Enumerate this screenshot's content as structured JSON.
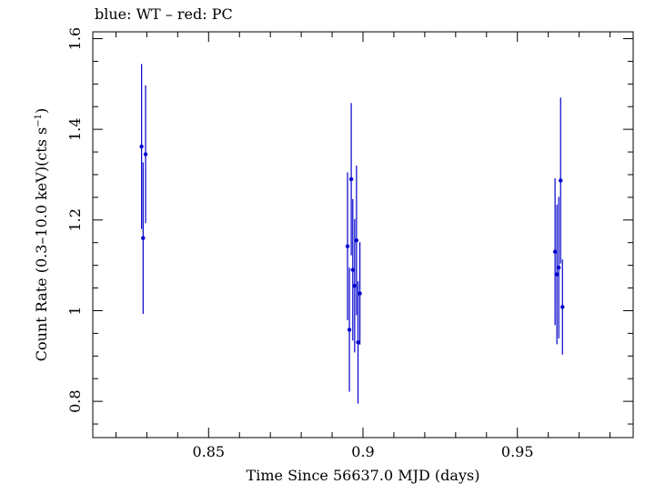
{
  "chart_data": {
    "type": "scatter",
    "title": "blue: WT – red: PC",
    "xlabel": "Time Since 56637.0 MJD (days)",
    "ylabel_main": "Count Rate (0.3–10.0 keV)(cts s",
    "ylabel_sup": "−1",
    "ylabel_close": ")",
    "xlim": [
      0.8125,
      0.9875
    ],
    "ylim": [
      0.72,
      1.615
    ],
    "x_ticks": [
      0.85,
      0.9,
      0.95
    ],
    "x_tick_labels": [
      "0.85",
      "0.9",
      "0.95"
    ],
    "y_ticks": [
      0.8,
      1.0,
      1.2,
      1.4,
      1.6
    ],
    "y_tick_labels": [
      "0.8",
      "1",
      "1.2",
      "1.4",
      "1.6"
    ],
    "series": [
      {
        "name": "WT",
        "color": "#0000cc",
        "points": [
          {
            "x": 0.8283,
            "y": 1.362,
            "yerr": 0.182
          },
          {
            "x": 0.8288,
            "y": 1.16,
            "yerr": 0.167
          },
          {
            "x": 0.8296,
            "y": 1.345,
            "yerr": 0.152
          },
          {
            "x": 0.895,
            "y": 1.142,
            "yerr": 0.163
          },
          {
            "x": 0.8956,
            "y": 0.958,
            "yerr": 0.137
          },
          {
            "x": 0.8962,
            "y": 1.29,
            "yerr": 0.168
          },
          {
            "x": 0.8967,
            "y": 1.09,
            "yerr": 0.156
          },
          {
            "x": 0.8973,
            "y": 1.055,
            "yerr": 0.147
          },
          {
            "x": 0.8979,
            "y": 1.155,
            "yerr": 0.165
          },
          {
            "x": 0.8984,
            "y": 0.93,
            "yerr": 0.135
          },
          {
            "x": 0.899,
            "y": 1.038,
            "yerr": 0.113
          },
          {
            "x": 0.9622,
            "y": 1.13,
            "yerr": 0.162
          },
          {
            "x": 0.9628,
            "y": 1.08,
            "yerr": 0.154
          },
          {
            "x": 0.9634,
            "y": 1.095,
            "yerr": 0.156
          },
          {
            "x": 0.964,
            "y": 1.287,
            "yerr": 0.183
          },
          {
            "x": 0.9646,
            "y": 1.008,
            "yerr": 0.105
          }
        ]
      },
      {
        "name": "PC",
        "color": "#cc0000",
        "points": []
      }
    ]
  }
}
